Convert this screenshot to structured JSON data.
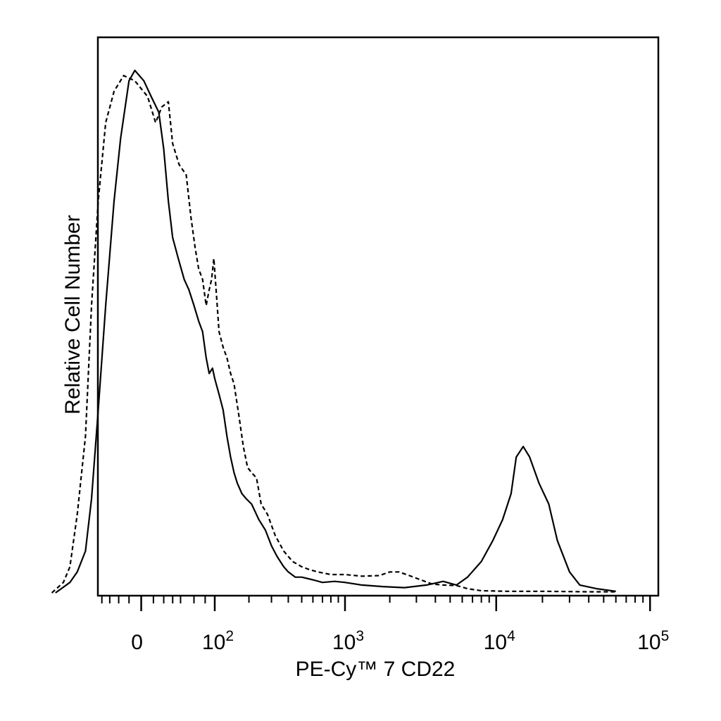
{
  "chart_data": {
    "type": "line",
    "xlabel": "PE-Cy™ 7 CD22",
    "ylabel": "Relative Cell Number",
    "x_scale": "biexponential",
    "x_ticks": [
      {
        "value": 0,
        "label": "0",
        "exp": ""
      },
      {
        "value": 100,
        "label": "10",
        "exp": "2"
      },
      {
        "value": 1000,
        "label": "10",
        "exp": "3"
      },
      {
        "value": 10000,
        "label": "10",
        "exp": "4"
      },
      {
        "value": 100000,
        "label": "10",
        "exp": "5"
      }
    ],
    "y_range": [
      0,
      100
    ],
    "grid": false,
    "legend": "none",
    "series": [
      {
        "style": "solid",
        "color": "#000000",
        "points": [
          [
            -130,
            0
          ],
          [
            -95,
            2
          ],
          [
            -80,
            4
          ],
          [
            -65,
            8
          ],
          [
            -55,
            18
          ],
          [
            -45,
            35
          ],
          [
            -35,
            55
          ],
          [
            -25,
            75
          ],
          [
            -18,
            87
          ],
          [
            -10,
            98
          ],
          [
            -5,
            100
          ],
          [
            2,
            98
          ],
          [
            8,
            95
          ],
          [
            15,
            92
          ],
          [
            20,
            85
          ],
          [
            25,
            75
          ],
          [
            30,
            68
          ],
          [
            37,
            64
          ],
          [
            45,
            60
          ],
          [
            52,
            58
          ],
          [
            60,
            55
          ],
          [
            68,
            52
          ],
          [
            75,
            50
          ],
          [
            82,
            45
          ],
          [
            88,
            42
          ],
          [
            95,
            43
          ],
          [
            100,
            41
          ],
          [
            110,
            38
          ],
          [
            120,
            35
          ],
          [
            130,
            30
          ],
          [
            140,
            26
          ],
          [
            150,
            23
          ],
          [
            160,
            21
          ],
          [
            175,
            19
          ],
          [
            190,
            18
          ],
          [
            210,
            17
          ],
          [
            240,
            14
          ],
          [
            270,
            12
          ],
          [
            300,
            9
          ],
          [
            330,
            7
          ],
          [
            370,
            5
          ],
          [
            400,
            4
          ],
          [
            450,
            3
          ],
          [
            500,
            3
          ],
          [
            600,
            2.5
          ],
          [
            700,
            2
          ],
          [
            850,
            2.2
          ],
          [
            1000,
            2
          ],
          [
            1300,
            1.5
          ],
          [
            1800,
            1.2
          ],
          [
            2500,
            1
          ],
          [
            3500,
            1.5
          ],
          [
            4500,
            2.2
          ],
          [
            5500,
            1.5
          ],
          [
            6500,
            3
          ],
          [
            8000,
            6
          ],
          [
            9500,
            10
          ],
          [
            11000,
            14
          ],
          [
            12500,
            19
          ],
          [
            13500,
            26
          ],
          [
            15000,
            28
          ],
          [
            16500,
            26
          ],
          [
            19000,
            21
          ],
          [
            22000,
            17
          ],
          [
            25000,
            10
          ],
          [
            30000,
            4
          ],
          [
            35000,
            1.5
          ],
          [
            45000,
            0.8
          ],
          [
            60000,
            0.3
          ]
        ]
      },
      {
        "style": "dashed",
        "color": "#000000",
        "points": [
          [
            -140,
            0
          ],
          [
            -110,
            2
          ],
          [
            -95,
            5
          ],
          [
            -80,
            15
          ],
          [
            -65,
            30
          ],
          [
            -55,
            55
          ],
          [
            -45,
            75
          ],
          [
            -35,
            90
          ],
          [
            -25,
            96
          ],
          [
            -15,
            99
          ],
          [
            -5,
            98
          ],
          [
            5,
            95
          ],
          [
            12,
            90
          ],
          [
            18,
            93
          ],
          [
            25,
            94
          ],
          [
            30,
            86
          ],
          [
            38,
            82
          ],
          [
            48,
            80
          ],
          [
            55,
            72
          ],
          [
            62,
            66
          ],
          [
            68,
            62
          ],
          [
            75,
            60
          ],
          [
            82,
            55
          ],
          [
            88,
            58
          ],
          [
            93,
            60
          ],
          [
            98,
            64
          ],
          [
            103,
            58
          ],
          [
            110,
            50
          ],
          [
            120,
            47
          ],
          [
            130,
            45
          ],
          [
            140,
            42
          ],
          [
            150,
            40
          ],
          [
            165,
            34
          ],
          [
            180,
            28
          ],
          [
            195,
            24
          ],
          [
            210,
            23
          ],
          [
            230,
            22
          ],
          [
            250,
            17
          ],
          [
            280,
            15
          ],
          [
            320,
            11
          ],
          [
            370,
            8
          ],
          [
            430,
            6
          ],
          [
            500,
            5
          ],
          [
            560,
            4.5
          ],
          [
            650,
            4
          ],
          [
            800,
            3.5
          ],
          [
            1000,
            3.5
          ],
          [
            1300,
            3.2
          ],
          [
            1700,
            3.3
          ],
          [
            2000,
            4
          ],
          [
            2300,
            4
          ],
          [
            2700,
            3.3
          ],
          [
            3200,
            2.5
          ],
          [
            3800,
            1.7
          ],
          [
            4500,
            1.5
          ],
          [
            5500,
            1.4
          ],
          [
            6500,
            0.8
          ],
          [
            8000,
            0.4
          ],
          [
            12000,
            0.3
          ],
          [
            20000,
            0.3
          ],
          [
            40000,
            0.2
          ],
          [
            60000,
            0.2
          ]
        ]
      }
    ]
  }
}
